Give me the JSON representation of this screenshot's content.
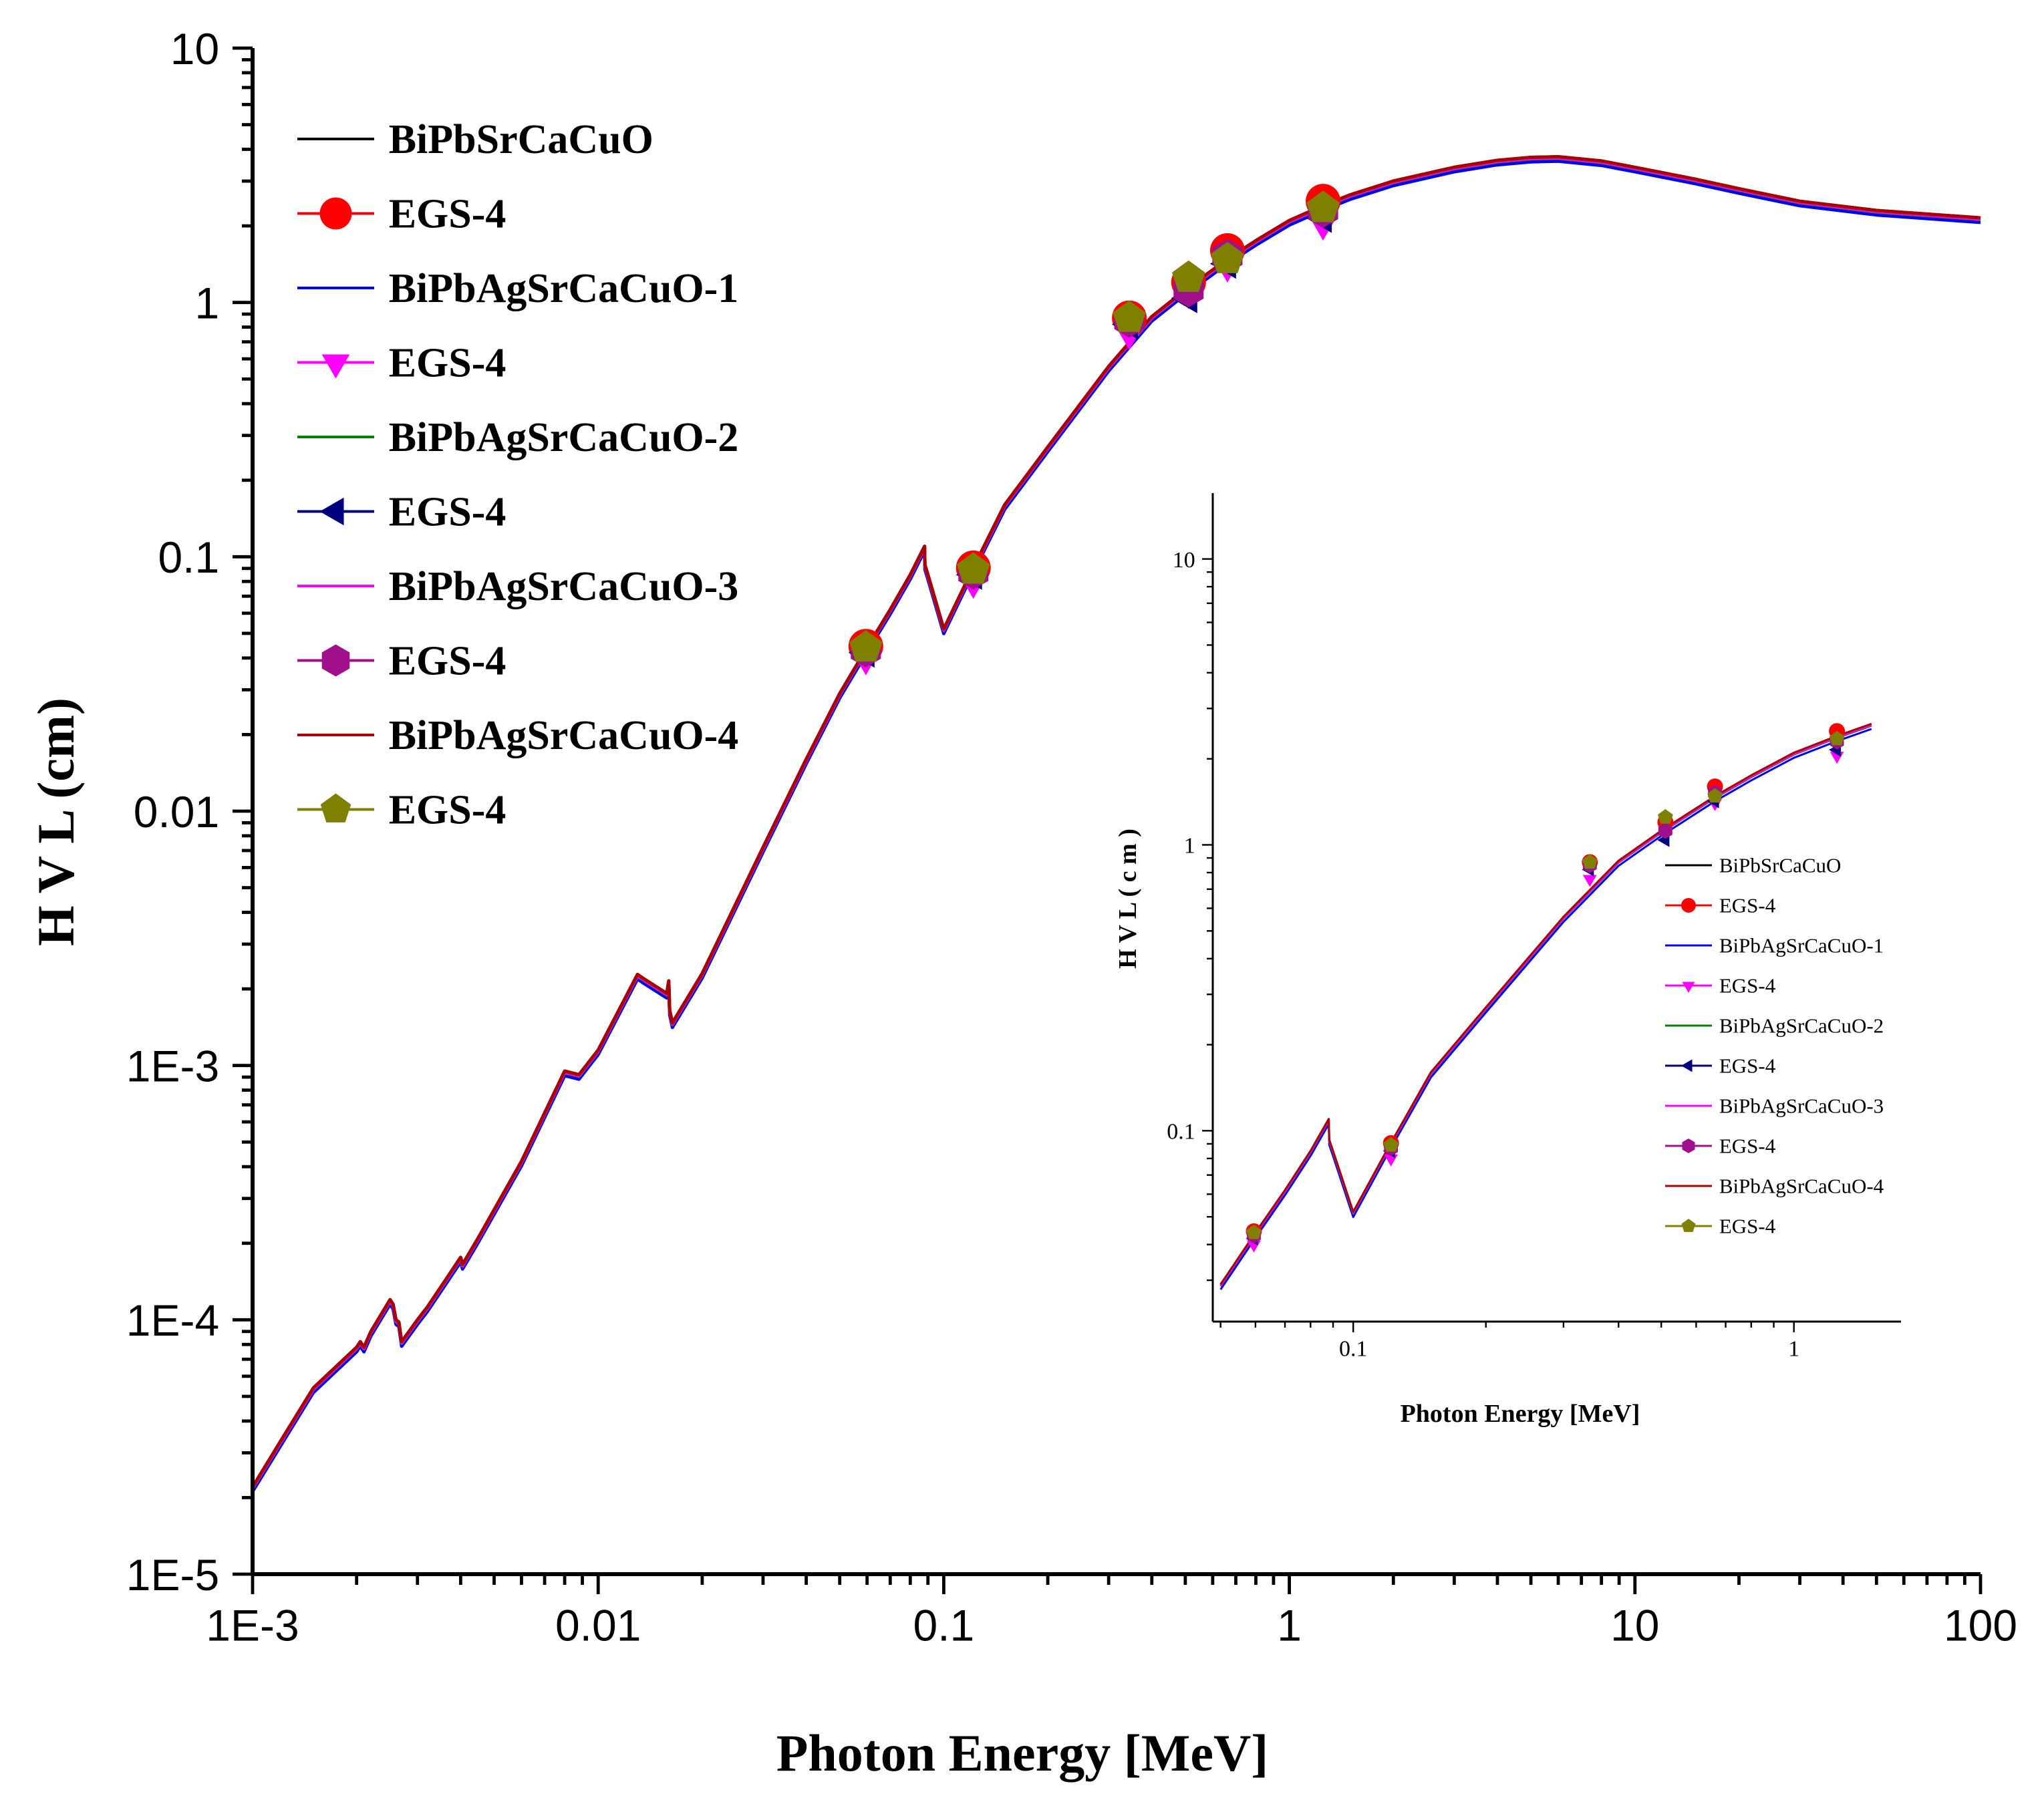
{
  "chart_data": [
    {
      "id": "main",
      "type": "line",
      "xscale": "log",
      "yscale": "log",
      "xlabel": "Photon Energy [MeV]",
      "ylabel": "H V L  (cm)",
      "xlim": [
        0.001,
        100
      ],
      "ylim": [
        1e-05,
        10
      ],
      "xticks": [
        0.001,
        0.01,
        0.1,
        1,
        10,
        100
      ],
      "xtick_labels": [
        "1E-3",
        "0.01",
        "0.1",
        "1",
        "10",
        "100"
      ],
      "yticks": [
        1e-05,
        0.0001,
        0.001,
        0.01,
        0.1,
        1,
        10
      ],
      "ytick_labels": [
        "1E-5",
        "1E-4",
        "1E-3",
        "0.01",
        "0.1",
        "1",
        "10"
      ],
      "legend_position": "top-left"
    },
    {
      "id": "inset",
      "type": "line",
      "xscale": "log",
      "yscale": "log",
      "xlabel": "Photon Energy [MeV]",
      "ylabel": "H V L  ( c m )",
      "xlim": [
        0.048,
        1.75
      ],
      "ylim": [
        0.0215,
        17
      ],
      "xticks": [
        0.1,
        1
      ],
      "xtick_labels": [
        "0.1",
        "1"
      ],
      "yticks": [
        0.1,
        1,
        10
      ],
      "ytick_labels": [
        "0.1",
        "1",
        "10"
      ],
      "legend_position": "bottom-right"
    }
  ],
  "series": [
    {
      "name": "BiPbSrCaCuO",
      "kind": "line",
      "color": "#000000",
      "factor": 1.0
    },
    {
      "name": "EGS-4",
      "kind": "marker",
      "marker": "circle",
      "color": "#ff0000",
      "of": "BiPbSrCaCuO",
      "values": [
        [
          0.0595,
          0.0445
        ],
        [
          0.1218,
          0.0905
        ],
        [
          0.3443,
          0.87
        ],
        [
          0.511,
          1.2
        ],
        [
          0.662,
          1.6
        ],
        [
          1.252,
          2.5
        ]
      ]
    },
    {
      "name": "BiPbAgSrCaCuO-1",
      "kind": "line",
      "color": "#0000ff",
      "factor": 0.96
    },
    {
      "name": "EGS-4",
      "kind": "marker",
      "marker": "triangle-down",
      "color": "#ff00ff",
      "of": "BiPbAgSrCaCuO-1",
      "values": [
        [
          0.0595,
          0.04
        ],
        [
          0.1218,
          0.08
        ],
        [
          0.3443,
          0.76
        ],
        [
          0.511,
          1.1
        ],
        [
          0.662,
          1.4
        ],
        [
          1.252,
          2.05
        ]
      ]
    },
    {
      "name": "BiPbAgSrCaCuO-2",
      "kind": "line",
      "color": "#008000",
      "factor": 0.985
    },
    {
      "name": "EGS-4",
      "kind": "marker",
      "marker": "triangle-left",
      "color": "#000080",
      "of": "BiPbAgSrCaCuO-2",
      "values": [
        [
          0.0595,
          0.042
        ],
        [
          0.1218,
          0.085
        ],
        [
          0.3443,
          0.82
        ],
        [
          0.511,
          1.04
        ],
        [
          0.662,
          1.42
        ],
        [
          1.252,
          2.15
        ]
      ]
    },
    {
      "name": "BiPbAgSrCaCuO-3",
      "kind": "line",
      "color": "#ff00ff",
      "factor": 0.99
    },
    {
      "name": "EGS-4",
      "kind": "marker",
      "marker": "hexagon",
      "color": "#a0108c",
      "of": "BiPbAgSrCaCuO-3",
      "values": [
        [
          0.0595,
          0.043
        ],
        [
          0.1218,
          0.087
        ],
        [
          0.3443,
          0.85
        ],
        [
          0.511,
          1.12
        ],
        [
          0.662,
          1.52
        ],
        [
          1.252,
          2.3
        ]
      ]
    },
    {
      "name": "BiPbAgSrCaCuO-4",
      "kind": "line",
      "color": "#aa0000",
      "factor": 1.0
    },
    {
      "name": "EGS-4",
      "kind": "marker",
      "marker": "pentagon",
      "color": "#808000",
      "of": "BiPbAgSrCaCuO-4",
      "values": [
        [
          0.0595,
          0.044
        ],
        [
          0.1218,
          0.089
        ],
        [
          0.3443,
          0.87
        ],
        [
          0.511,
          1.25
        ],
        [
          0.662,
          1.48
        ],
        [
          1.252,
          2.35
        ]
      ]
    }
  ],
  "curve": [
    [
      0.001,
      2.2e-05
    ],
    [
      0.0012,
      3.3e-05
    ],
    [
      0.0015,
      5.4e-05
    ],
    [
      0.002,
      7.8e-05
    ],
    [
      0.00205,
      8.2e-05
    ],
    [
      0.0021,
      7.8e-05
    ],
    [
      0.0022,
      9e-05
    ],
    [
      0.0025,
      0.00012
    ],
    [
      0.00255,
      0.000115
    ],
    [
      0.0026,
      0.0001
    ],
    [
      0.00265,
      9.8e-05
    ],
    [
      0.0027,
      8.2e-05
    ],
    [
      0.003,
      0.0001
    ],
    [
      0.0032,
      0.000112
    ],
    [
      0.0036,
      0.000142
    ],
    [
      0.004,
      0.000176
    ],
    [
      0.00405,
      0.000165
    ],
    [
      0.0045,
      0.00021
    ],
    [
      0.006,
      0.00042
    ],
    [
      0.008,
      0.00095
    ],
    [
      0.0088,
      0.00092
    ],
    [
      0.01,
      0.00115
    ],
    [
      0.013,
      0.00228
    ],
    [
      0.0135,
      0.0022
    ],
    [
      0.0158,
      0.00192
    ],
    [
      0.016,
      0.00215
    ],
    [
      0.0161,
      0.00165
    ],
    [
      0.0164,
      0.00147
    ],
    [
      0.02,
      0.0023
    ],
    [
      0.03,
      0.0072
    ],
    [
      0.04,
      0.016
    ],
    [
      0.05,
      0.029
    ],
    [
      0.06,
      0.044
    ],
    [
      0.07,
      0.062
    ],
    [
      0.08,
      0.085
    ],
    [
      0.088,
      0.11
    ],
    [
      0.0882,
      0.093
    ],
    [
      0.09,
      0.085
    ],
    [
      0.1,
      0.052
    ],
    [
      0.12,
      0.087
    ],
    [
      0.15,
      0.16
    ],
    [
      0.2,
      0.27
    ],
    [
      0.3,
      0.56
    ],
    [
      0.4,
      0.88
    ],
    [
      0.5,
      1.12
    ],
    [
      0.662,
      1.48
    ],
    [
      0.8,
      1.75
    ],
    [
      1,
      2.1
    ],
    [
      1.25,
      2.4
    ],
    [
      1.5,
      2.65
    ],
    [
      2,
      3.0
    ],
    [
      3,
      3.4
    ],
    [
      4,
      3.62
    ],
    [
      5,
      3.72
    ],
    [
      6,
      3.74
    ],
    [
      8,
      3.6
    ],
    [
      10,
      3.4
    ],
    [
      15,
      3.05
    ],
    [
      20,
      2.8
    ],
    [
      30,
      2.5
    ],
    [
      50,
      2.3
    ],
    [
      100,
      2.15
    ]
  ]
}
